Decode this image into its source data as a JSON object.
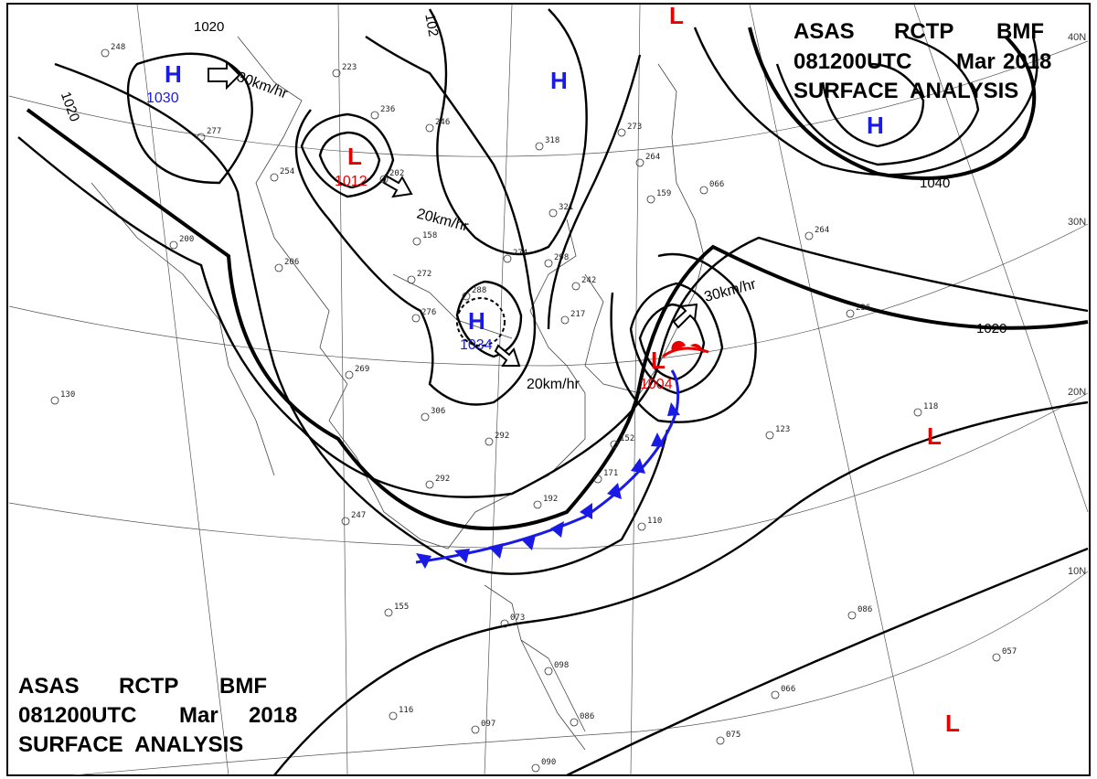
{
  "header": {
    "line1": [
      "ASAS",
      "RCTP",
      "BMF"
    ],
    "line2": [
      "081200UTC",
      "Mar",
      "2018"
    ],
    "line3": "SURFACE  ANALYSIS"
  },
  "colors": {
    "high": "#1a1ae6",
    "low": "#e60000",
    "cold_front": "#1a1ae6",
    "warm_front": "#e60000"
  },
  "latitude_labels": [
    "40N",
    "30N",
    "20N",
    "10N"
  ],
  "isobar_labels": [
    "1020",
    "1020",
    "1040",
    "1020",
    "102"
  ],
  "pressure_systems": [
    {
      "type": "H",
      "value": "1030"
    },
    {
      "type": "L",
      "value": "1012"
    },
    {
      "type": "H",
      "value": ""
    },
    {
      "type": "H",
      "value": "1034"
    },
    {
      "type": "L",
      "value": "1004"
    },
    {
      "type": "H",
      "value": ""
    },
    {
      "type": "L",
      "value": ""
    },
    {
      "type": "L",
      "value": ""
    },
    {
      "type": "L",
      "value": ""
    }
  ],
  "movement_speeds": [
    "30km/hr",
    "20km/hr",
    "20km/hr",
    "30km/hr"
  ],
  "station_reports": [
    "248",
    "223",
    "236",
    "246",
    "277",
    "202",
    "254",
    "200",
    "206",
    "272",
    "158",
    "276",
    "288",
    "274",
    "298",
    "242",
    "217",
    "269",
    "306",
    "292",
    "292",
    "247",
    "318",
    "273",
    "264",
    "321",
    "159",
    "066",
    "264",
    "236",
    "123",
    "118",
    "152",
    "171",
    "192",
    "110",
    "155",
    "073",
    "098",
    "116",
    "097",
    "086",
    "090",
    "075",
    "066",
    "057",
    "086",
    "130"
  ]
}
